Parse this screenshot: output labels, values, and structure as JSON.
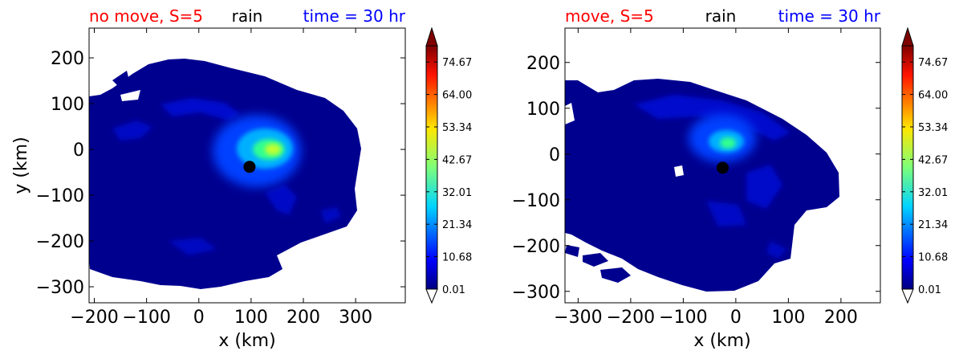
{
  "chart_data": [
    {
      "type": "contourf",
      "titles": {
        "left": "no move, S=5",
        "center": "rain",
        "right": "time = 30 hr"
      },
      "title_colors": {
        "left": "#ff0000",
        "center": "#000000",
        "right": "#0000ff"
      },
      "xlabel": "x (km)",
      "ylabel": "y (km)",
      "xlim": [
        -210,
        395
      ],
      "ylim": [
        -335,
        265
      ],
      "xticks": [
        -200,
        -100,
        0,
        100,
        200,
        300
      ],
      "xtick_labels": [
        "−200",
        "−100",
        "0",
        "100",
        "200",
        "300"
      ],
      "yticks": [
        200,
        100,
        0,
        -100,
        -200,
        -300
      ],
      "ytick_labels": [
        "200",
        "100",
        "0",
        "−100",
        "−200",
        "−300"
      ],
      "center": {
        "x": 97,
        "y": -38
      },
      "max_region": {
        "x": 145,
        "y": -5,
        "value": 48
      },
      "colorbar": {
        "ticks": [
          0.01,
          10.68,
          21.34,
          32.01,
          42.67,
          53.34,
          64.0,
          74.67
        ],
        "tick_labels": [
          "0.01",
          "10.68",
          "21.34",
          "32.01",
          "42.67",
          "53.34",
          "64.00",
          "74.67"
        ],
        "range": [
          0.01,
          80
        ],
        "extend": "both"
      }
    },
    {
      "type": "contourf",
      "titles": {
        "left": "move, S=5",
        "center": "rain",
        "right": "time = 30 hr"
      },
      "title_colors": {
        "left": "#ff0000",
        "center": "#000000",
        "right": "#0000ff"
      },
      "xlabel": "x (km)",
      "ylabel": "",
      "xlim": [
        -325,
        275
      ],
      "ylim": [
        -325,
        275
      ],
      "xticks": [
        -300,
        -200,
        -100,
        0,
        100,
        200
      ],
      "xtick_labels": [
        "−300",
        "−200",
        "−100",
        "0",
        "100",
        "200"
      ],
      "yticks": [
        200,
        100,
        0,
        -100,
        -200,
        -300
      ],
      "ytick_labels": [
        "200",
        "100",
        "0",
        "−100",
        "−200",
        "−300"
      ],
      "center": {
        "x": -25,
        "y": -30
      },
      "max_region": {
        "x": -15,
        "y": 5,
        "value": 42
      },
      "colorbar": {
        "ticks": [
          0.01,
          10.68,
          21.34,
          32.01,
          42.67,
          53.34,
          64.0,
          74.67
        ],
        "tick_labels": [
          "0.01",
          "10.68",
          "21.34",
          "32.01",
          "42.67",
          "53.34",
          "64.00",
          "74.67"
        ],
        "range": [
          0.01,
          80
        ],
        "extend": "both"
      }
    }
  ]
}
